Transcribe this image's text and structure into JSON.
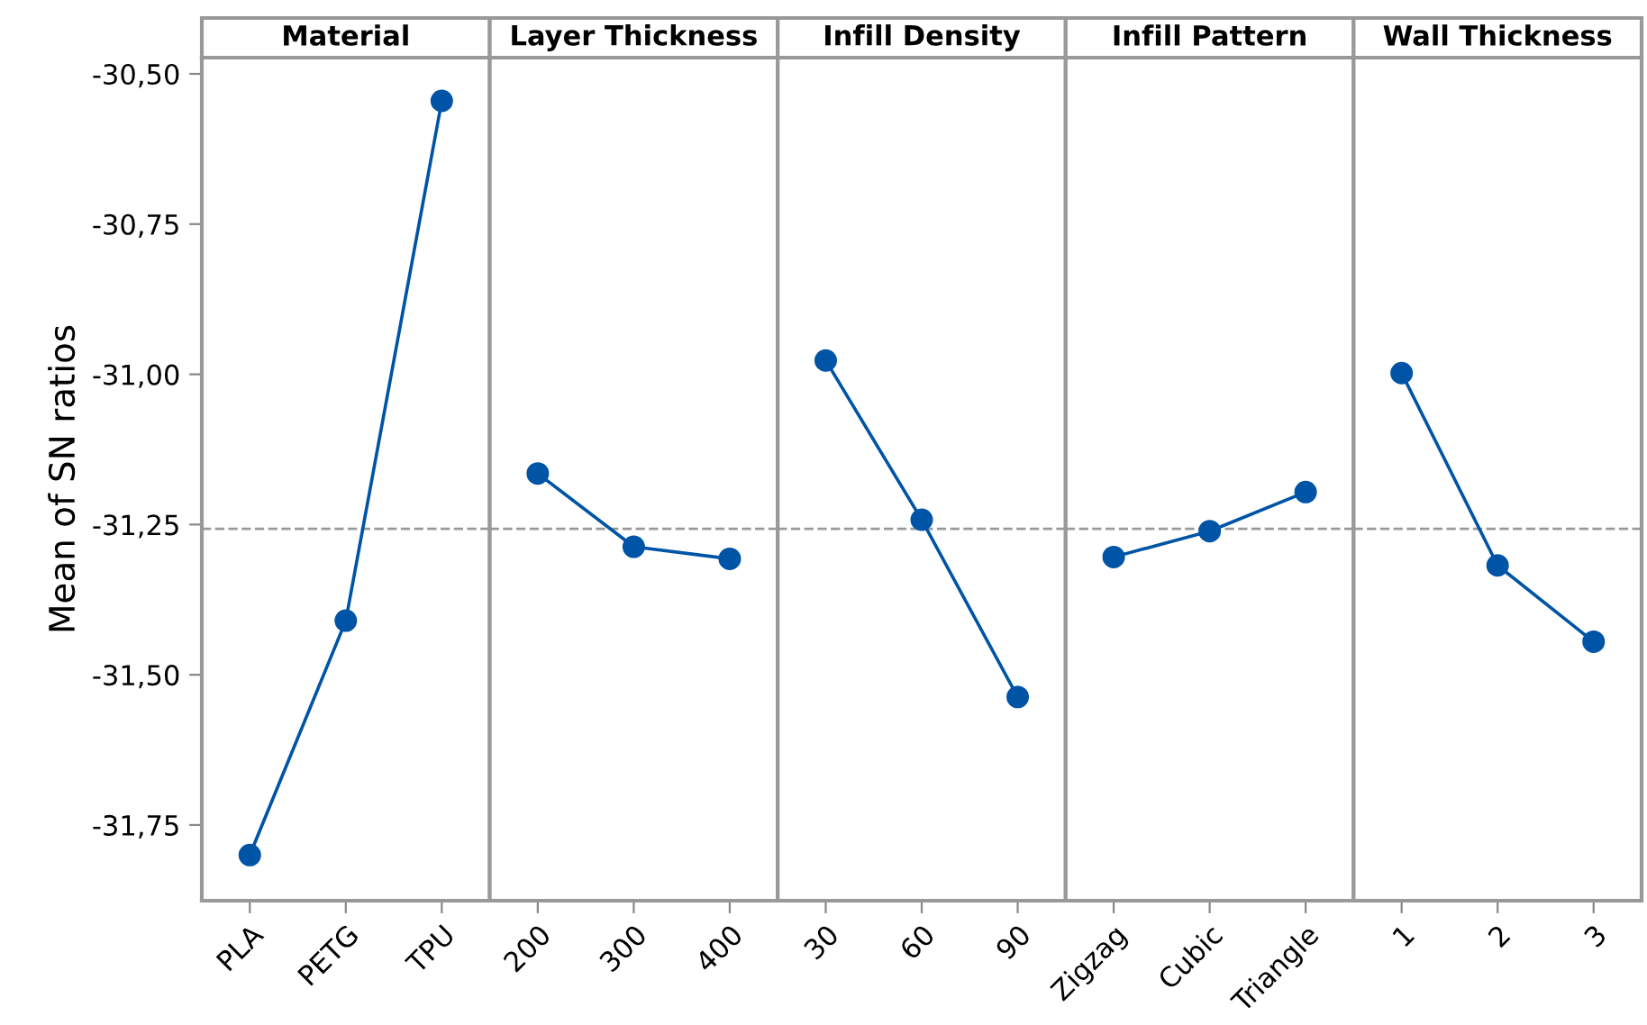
{
  "chart_data": [
    {
      "type": "line",
      "title": "Material",
      "ylabel": "Mean of SN ratios",
      "categories": [
        "PLA",
        "PETG",
        "TPU"
      ],
      "series": [
        {
          "color": "#0054a6",
          "values": [
            -31.8,
            -31.41,
            -30.545
          ]
        }
      ],
      "ylim": [
        -31.876,
        -30.473
      ],
      "yticks": [
        {
          "value": -30.5,
          "label": "-30,50"
        },
        {
          "value": -30.75,
          "label": "-30,75"
        },
        {
          "value": -31.0,
          "label": "-31,00"
        },
        {
          "value": -31.25,
          "label": "-31,25"
        },
        {
          "value": -31.5,
          "label": "-31,50"
        },
        {
          "value": -31.75,
          "label": "-31,75"
        }
      ],
      "ref_lines": [
        {
          "axis": "y",
          "value": -31.257,
          "color": "#999999",
          "line_style": "dashed"
        }
      ],
      "marker": "circle",
      "line_style": "solid",
      "grid": false
    },
    {
      "type": "line",
      "title": "Layer Thickness",
      "categories": [
        "200",
        "300",
        "400"
      ],
      "series": [
        {
          "color": "#0054a6",
          "values": [
            -31.165,
            -31.287,
            -31.307
          ]
        }
      ],
      "ylim": [
        -31.876,
        -30.473
      ],
      "tick_labels": "x",
      "ref_lines": [
        {
          "axis": "y",
          "value": -31.257,
          "color": "#999999",
          "line_style": "dashed"
        }
      ],
      "marker": "circle",
      "line_style": "solid",
      "grid": false
    },
    {
      "type": "line",
      "title": "Infill Density",
      "categories": [
        "30",
        "60",
        "90"
      ],
      "series": [
        {
          "color": "#0054a6",
          "values": [
            -30.977,
            -31.242,
            -31.537
          ]
        }
      ],
      "ylim": [
        -31.876,
        -30.473
      ],
      "tick_labels": "x",
      "ref_lines": [
        {
          "axis": "y",
          "value": -31.257,
          "color": "#999999",
          "line_style": "dashed"
        }
      ],
      "marker": "circle",
      "line_style": "solid",
      "grid": false
    },
    {
      "type": "line",
      "title": "Infill Pattern",
      "categories": [
        "Zigzag",
        "Cubic",
        "Triangle"
      ],
      "series": [
        {
          "color": "#0054a6",
          "values": [
            -31.304,
            -31.261,
            -31.196
          ]
        }
      ],
      "ylim": [
        -31.876,
        -30.473
      ],
      "tick_labels": "x",
      "ref_lines": [
        {
          "axis": "y",
          "value": -31.257,
          "color": "#999999",
          "line_style": "dashed"
        }
      ],
      "marker": "circle",
      "line_style": "solid",
      "grid": false
    },
    {
      "type": "line",
      "title": "Wall Thickness",
      "categories": [
        "1",
        "2",
        "3"
      ],
      "series": [
        {
          "color": "#0054a6",
          "values": [
            -30.998,
            -31.318,
            -31.445
          ]
        }
      ],
      "ylim": [
        -31.876,
        -30.473
      ],
      "tick_labels": "x",
      "ref_lines": [
        {
          "axis": "y",
          "value": -31.257,
          "color": "#999999",
          "line_style": "dashed"
        }
      ],
      "marker": "circle",
      "line_style": "solid",
      "grid": false
    }
  ]
}
